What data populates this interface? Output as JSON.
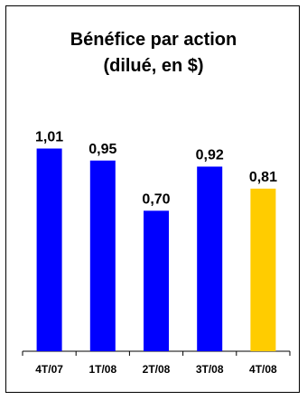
{
  "chart_data": {
    "type": "bar",
    "title_line1": "Bénéfice par action",
    "title_line2": "(dilué, en $)",
    "categories": [
      "4T/07",
      "1T/08",
      "2T/08",
      "3T/08",
      "4T/08"
    ],
    "values": [
      1.01,
      0.95,
      0.7,
      0.92,
      0.81
    ],
    "value_labels": [
      "1,01",
      "0,95",
      "0,70",
      "0,92",
      "0,81"
    ],
    "colors": [
      "#0000FF",
      "#0000FF",
      "#0000FF",
      "#0000FF",
      "#FFCC00"
    ],
    "ylim": [
      0,
      1.12
    ],
    "grid": false,
    "legend": "none"
  }
}
